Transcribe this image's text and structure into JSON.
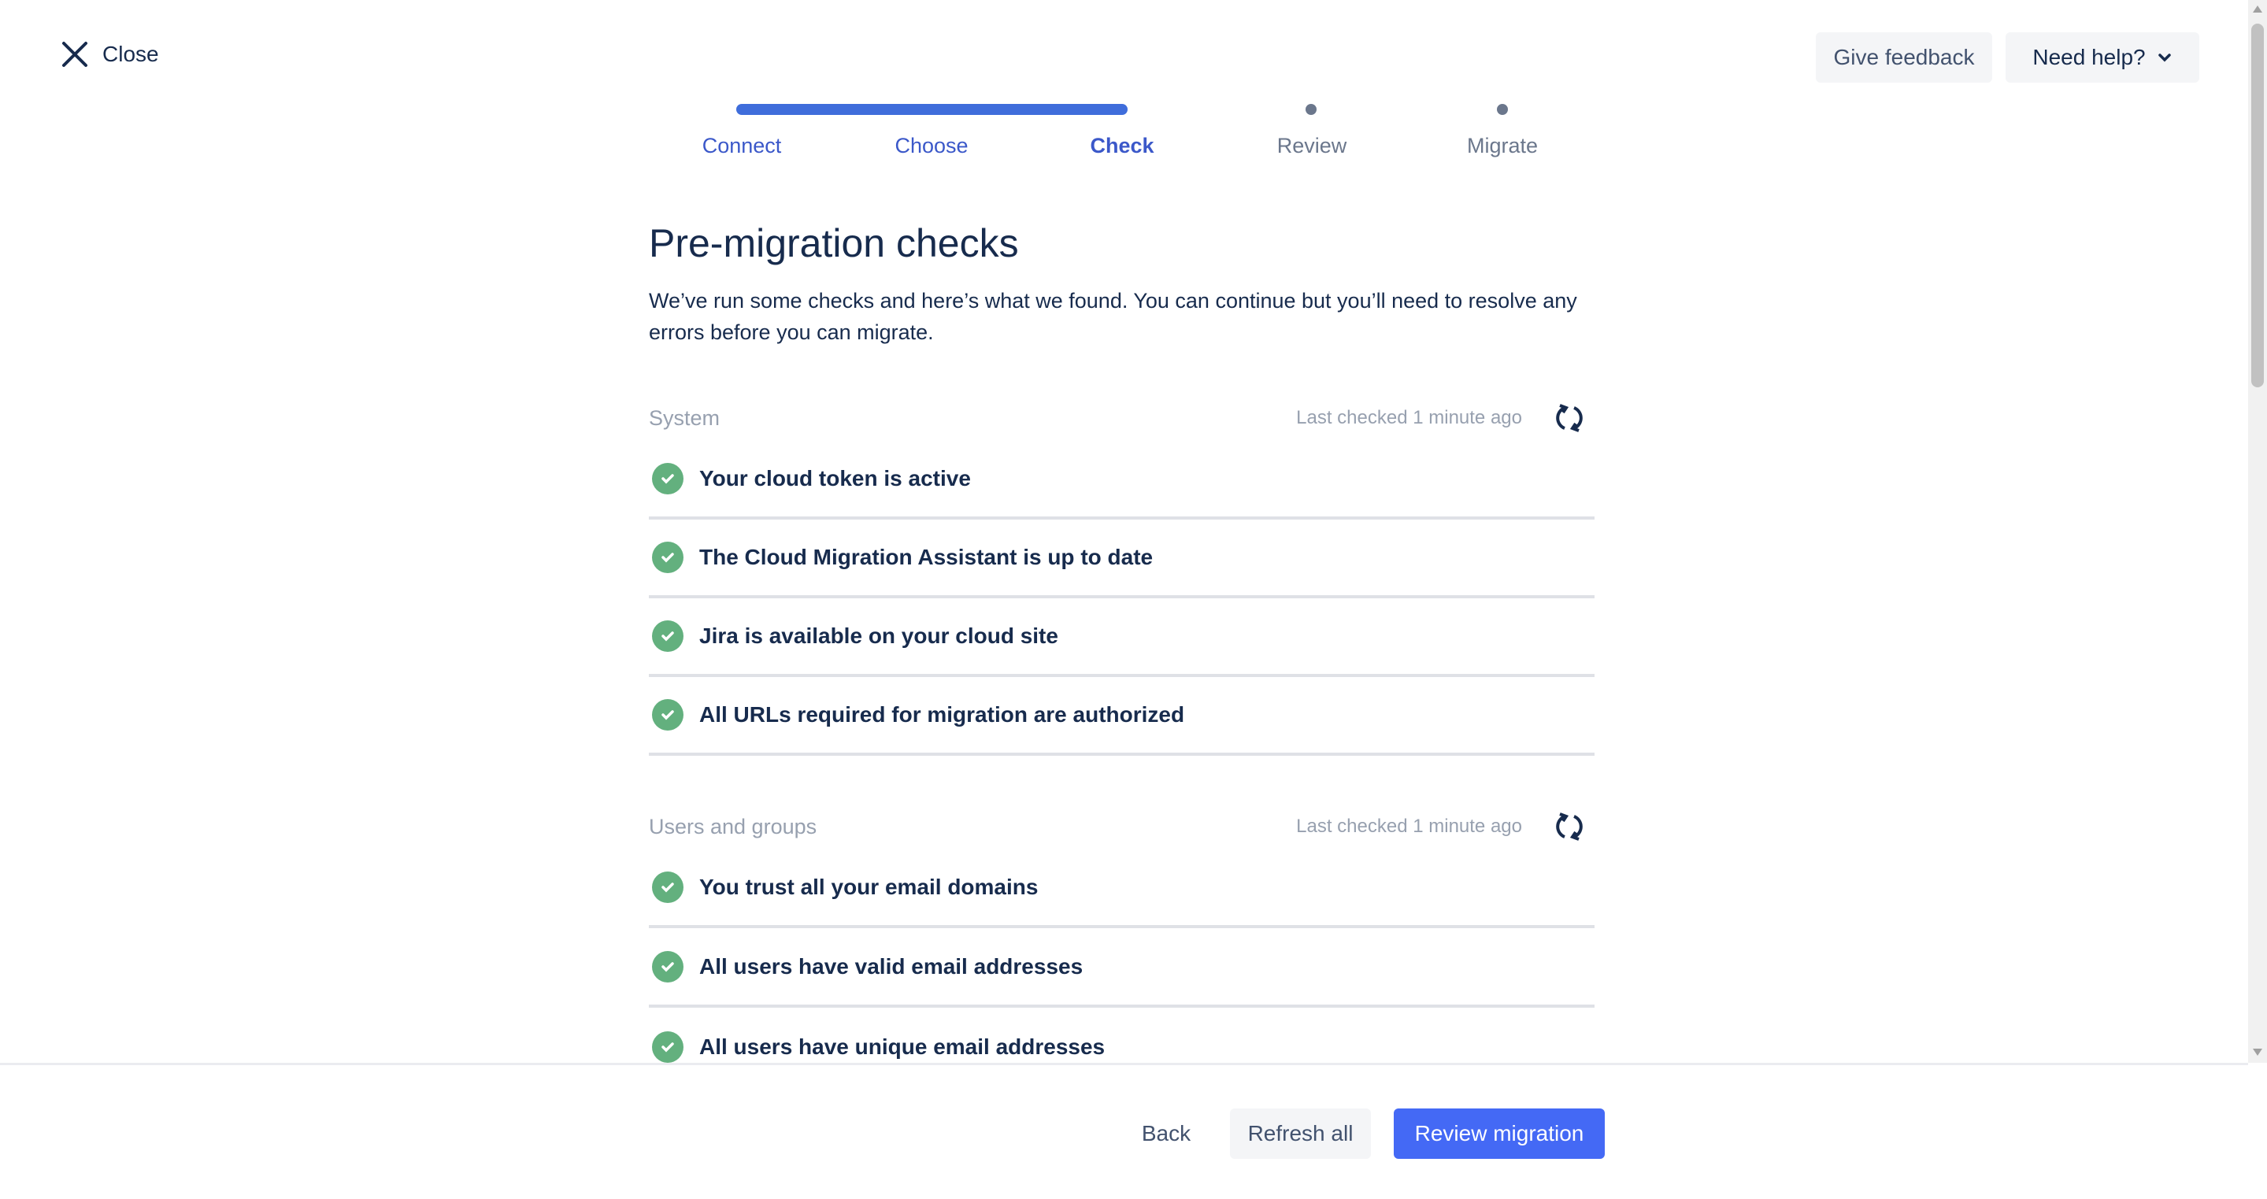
{
  "header": {
    "close_label": "Close",
    "feedback_label": "Give feedback",
    "help_label": "Need help?"
  },
  "stepper": {
    "steps": [
      {
        "label": "Connect",
        "state": "done"
      },
      {
        "label": "Choose",
        "state": "done"
      },
      {
        "label": "Check",
        "state": "current"
      },
      {
        "label": "Review",
        "state": "todo"
      },
      {
        "label": "Migrate",
        "state": "todo"
      }
    ],
    "accent": "#3f6ddb"
  },
  "main": {
    "title": "Pre-migration checks",
    "description": "We’ve run some checks and here’s what we found. You can continue but you’ll need to resolve any errors before you can migrate.",
    "sections": [
      {
        "name": "System",
        "last_checked": "Last checked 1 minute ago",
        "items": [
          "Your cloud token is active",
          "The Cloud Migration Assistant is up to date",
          "Jira is available on your cloud site",
          "All URLs required for migration are authorized"
        ]
      },
      {
        "name": "Users and groups",
        "last_checked": "Last checked 1 minute ago",
        "items": [
          "You trust all your email domains",
          "All users have valid email addresses",
          "All users have unique email addresses"
        ]
      }
    ]
  },
  "footer": {
    "back_label": "Back",
    "refresh_label": "Refresh all",
    "review_label": "Review migration"
  },
  "colors": {
    "success": "#63b07e",
    "primary": "#4469f5"
  }
}
